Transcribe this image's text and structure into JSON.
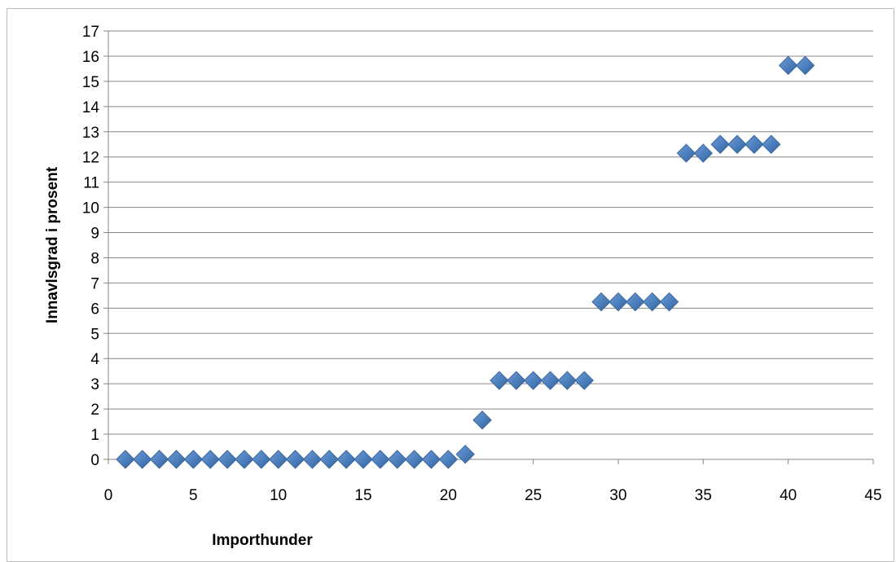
{
  "chart_data": {
    "type": "scatter",
    "xlabel": "Importhunder",
    "ylabel": "Innavlsgrad i prosent",
    "xlim": [
      0,
      45
    ],
    "ylim": [
      0,
      17
    ],
    "x_ticks": [
      0,
      5,
      10,
      15,
      20,
      25,
      30,
      35,
      40,
      45
    ],
    "y_ticks": [
      0,
      1,
      2,
      3,
      4,
      5,
      6,
      7,
      8,
      9,
      10,
      11,
      12,
      13,
      14,
      15,
      16,
      17
    ],
    "grid": "horizontal",
    "legend": "none",
    "marker": "diamond",
    "marker_color": "#4a7ebb",
    "series": [
      {
        "x": [
          1,
          2,
          3,
          4,
          5,
          6,
          7,
          8,
          9,
          10,
          11,
          12,
          13,
          14,
          15,
          16,
          17,
          18,
          19,
          20,
          21,
          22,
          23,
          24,
          25,
          26,
          27,
          28,
          29,
          30,
          31,
          32,
          33,
          34,
          35,
          36,
          37,
          38,
          39,
          40,
          41
        ],
        "y": [
          0,
          0,
          0,
          0,
          0,
          0,
          0,
          0,
          0,
          0,
          0,
          0,
          0,
          0,
          0,
          0,
          0,
          0,
          0,
          0,
          0.2,
          1.56,
          3.13,
          3.13,
          3.13,
          3.13,
          3.13,
          3.13,
          6.25,
          6.25,
          6.25,
          6.25,
          6.25,
          12.15,
          12.15,
          12.5,
          12.5,
          12.5,
          12.5,
          15.63,
          15.63
        ]
      }
    ]
  }
}
